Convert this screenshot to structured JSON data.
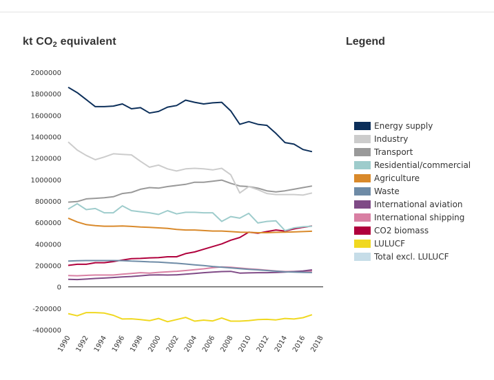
{
  "chart_data": {
    "type": "line",
    "title": "kt CO2 equivalent",
    "title_main": "kt CO",
    "title_sub": "2",
    "title_rest": " equivalent",
    "legend_title": "Legend",
    "xlabel": "",
    "ylabel": "kt CO2 equivalent",
    "ylim": [
      -400000,
      2000000
    ],
    "xlim": [
      1990,
      2018
    ],
    "grid": false,
    "legend_position": "right",
    "y_ticks": [
      "2000000",
      "1800000",
      "1600000",
      "1400000",
      "1200000",
      "1000000",
      "800000",
      "600000",
      "400000",
      "200000",
      "0",
      "-200000",
      "-400000"
    ],
    "y_tick_values": [
      2000000,
      1800000,
      1600000,
      1400000,
      1200000,
      1000000,
      800000,
      600000,
      400000,
      200000,
      0,
      -200000,
      -400000
    ],
    "x_ticks": [
      "1990",
      "1992",
      "1994",
      "1996",
      "1998",
      "2000",
      "2002",
      "2004",
      "2006",
      "2008",
      "2010",
      "2012",
      "2014",
      "2016",
      "2018"
    ],
    "x_tick_values": [
      1990,
      1992,
      1994,
      1996,
      1998,
      2000,
      2002,
      2004,
      2006,
      2008,
      2010,
      2012,
      2014,
      2016,
      2018
    ],
    "x": [
      1990,
      1991,
      1992,
      1993,
      1994,
      1995,
      1996,
      1997,
      1998,
      1999,
      2000,
      2001,
      2002,
      2003,
      2004,
      2005,
      2006,
      2007,
      2008,
      2009,
      2010,
      2011,
      2012,
      2013,
      2014,
      2015,
      2016,
      2017
    ],
    "series": [
      {
        "name": "Energy supply",
        "color": "#0c2f5a",
        "values": [
          1860000,
          1810000,
          1745000,
          1680000,
          1680000,
          1685000,
          1705000,
          1660000,
          1670000,
          1620000,
          1635000,
          1675000,
          1690000,
          1740000,
          1720000,
          1705000,
          1715000,
          1720000,
          1640000,
          1515000,
          1540000,
          1515000,
          1505000,
          1430000,
          1345000,
          1330000,
          1280000,
          1260000
        ]
      },
      {
        "name": "Industry",
        "color": "#cccccc",
        "values": [
          1350000,
          1275000,
          1225000,
          1185000,
          1210000,
          1240000,
          1235000,
          1230000,
          1170000,
          1115000,
          1135000,
          1100000,
          1080000,
          1100000,
          1105000,
          1100000,
          1090000,
          1105000,
          1045000,
          875000,
          935000,
          905000,
          870000,
          860000,
          860000,
          860000,
          855000,
          875000
        ]
      },
      {
        "name": "Transport",
        "color": "#999999",
        "values": [
          790000,
          795000,
          820000,
          825000,
          830000,
          840000,
          870000,
          880000,
          910000,
          925000,
          920000,
          935000,
          945000,
          955000,
          975000,
          975000,
          985000,
          995000,
          965000,
          940000,
          935000,
          920000,
          895000,
          885000,
          895000,
          910000,
          925000,
          940000
        ]
      },
      {
        "name": "Residential/commercial",
        "color": "#9ecccc",
        "values": [
          725000,
          775000,
          720000,
          730000,
          690000,
          690000,
          755000,
          710000,
          700000,
          690000,
          675000,
          710000,
          680000,
          695000,
          695000,
          690000,
          690000,
          610000,
          655000,
          640000,
          685000,
          595000,
          610000,
          615000,
          525000,
          550000,
          560000,
          565000
        ]
      },
      {
        "name": "Agriculture",
        "color": "#d9892a",
        "values": [
          640000,
          605000,
          580000,
          570000,
          565000,
          565000,
          567000,
          563000,
          558000,
          555000,
          550000,
          545000,
          535000,
          530000,
          530000,
          525000,
          520000,
          520000,
          515000,
          510000,
          508000,
          505000,
          505000,
          508000,
          510000,
          512000,
          515000,
          518000
        ]
      },
      {
        "name": "Waste",
        "color": "#6e8ba6",
        "values": [
          240000,
          243000,
          245000,
          245000,
          245000,
          245000,
          244000,
          240000,
          237000,
          233000,
          230000,
          225000,
          220000,
          213000,
          205000,
          198000,
          190000,
          183000,
          177000,
          170000,
          163000,
          158000,
          152000,
          146000,
          140000,
          137000,
          135000,
          133000
        ]
      },
      {
        "name": "International aviation",
        "color": "#7f4a86",
        "values": [
          70000,
          68000,
          72000,
          78000,
          82000,
          87000,
          92000,
          97000,
          103000,
          110000,
          112000,
          110000,
          112000,
          118000,
          125000,
          132000,
          138000,
          142000,
          144000,
          128000,
          130000,
          132000,
          132000,
          134000,
          138000,
          142000,
          148000,
          158000
        ]
      },
      {
        "name": "International shipping",
        "color": "#d97fa3",
        "values": [
          105000,
          103000,
          107000,
          110000,
          110000,
          110000,
          118000,
          125000,
          132000,
          128000,
          135000,
          140000,
          145000,
          152000,
          160000,
          168000,
          178000,
          185000,
          182000,
          175000,
          168000,
          162000,
          155000,
          148000,
          143000,
          143000,
          145000,
          148000
        ]
      },
      {
        "name": "CO2 biomass",
        "color": "#b0003c",
        "values": [
          200000,
          210000,
          210000,
          225000,
          225000,
          235000,
          250000,
          262000,
          265000,
          270000,
          272000,
          280000,
          280000,
          310000,
          325000,
          350000,
          375000,
          400000,
          435000,
          460000,
          510000,
          500000,
          515000,
          530000,
          520000,
          540000,
          555000,
          568000
        ]
      },
      {
        "name": "LULUCF",
        "color": "#f0d820",
        "values": [
          -250000,
          -270000,
          -240000,
          -240000,
          -245000,
          -265000,
          -300000,
          -298000,
          -305000,
          -315000,
          -295000,
          -325000,
          -305000,
          -285000,
          -320000,
          -310000,
          -318000,
          -290000,
          -320000,
          -320000,
          -315000,
          -305000,
          -303000,
          -308000,
          -295000,
          -300000,
          -288000,
          -260000
        ]
      },
      {
        "name": "Total excl. LULUCF",
        "color": "#c6dde8",
        "values": []
      }
    ]
  }
}
